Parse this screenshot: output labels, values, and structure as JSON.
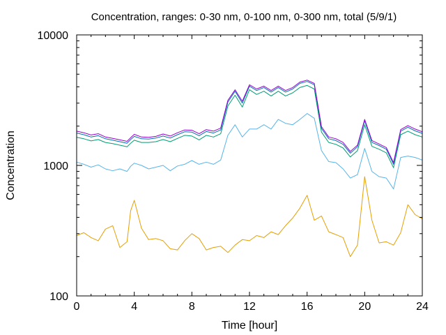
{
  "chart_data": {
    "type": "line",
    "title": "Concentration, ranges: 0-30 nm, 0-100 nm, 0-300 nm, total (5/9/1)",
    "xlabel": "Time [hour]",
    "ylabel": "Concentration",
    "xlim": [
      0,
      24
    ],
    "ylim": [
      100,
      10000
    ],
    "yscale": "log",
    "grid": false,
    "legend": "none",
    "x_ticks": [
      "0",
      "4",
      "8",
      "12",
      "16",
      "20",
      "24"
    ],
    "y_ticks": [
      "100",
      "1000",
      "10000"
    ],
    "x": [
      0,
      0.5,
      1,
      1.5,
      2,
      2.5,
      3,
      3.5,
      3.75,
      4,
      4.5,
      5,
      5.5,
      6,
      6.5,
      7,
      7.5,
      8,
      8.5,
      9,
      9.5,
      10,
      10.5,
      11,
      11.5,
      12,
      12.5,
      13,
      13.5,
      14,
      14.5,
      15,
      15.5,
      16,
      16.5,
      17,
      17.5,
      18,
      18.5,
      19,
      19.5,
      20,
      20.5,
      21,
      21.5,
      22,
      22.5,
      23,
      23.5,
      24
    ],
    "series": [
      {
        "color": "#e69f00",
        "values": [
          290,
          305,
          280,
          265,
          325,
          345,
          235,
          260,
          450,
          540,
          330,
          270,
          275,
          265,
          230,
          225,
          265,
          300,
          275,
          225,
          235,
          240,
          215,
          245,
          270,
          265,
          290,
          280,
          310,
          295,
          345,
          395,
          470,
          590,
          380,
          410,
          310,
          295,
          280,
          200,
          245,
          820,
          380,
          255,
          260,
          245,
          305,
          500,
          420,
          390
        ]
      },
      {
        "color": "#56b4e9",
        "values": [
          1060,
          1020,
          970,
          1010,
          940,
          910,
          940,
          900,
          985,
          1040,
          1000,
          940,
          970,
          1000,
          910,
          990,
          1020,
          1090,
          1020,
          1060,
          1020,
          1100,
          1700,
          2050,
          1650,
          1900,
          1900,
          2050,
          1900,
          2250,
          2100,
          2050,
          2250,
          2500,
          2300,
          1300,
          1070,
          1050,
          940,
          800,
          850,
          1350,
          900,
          820,
          800,
          660,
          1150,
          1180,
          1150,
          1100
        ]
      },
      {
        "color": "#009e73",
        "values": [
          1640,
          1600,
          1540,
          1580,
          1500,
          1470,
          1430,
          1390,
          1480,
          1560,
          1500,
          1500,
          1520,
          1580,
          1520,
          1610,
          1700,
          1680,
          1570,
          1700,
          1650,
          1750,
          2850,
          3450,
          2800,
          3800,
          3500,
          3700,
          3400,
          3700,
          3400,
          3600,
          3950,
          4100,
          3850,
          1800,
          1500,
          1450,
          1360,
          1160,
          1300,
          2050,
          1400,
          1330,
          1250,
          960,
          1720,
          1830,
          1720,
          1650
        ]
      },
      {
        "color": "#0072b2",
        "values": [
          1770,
          1720,
          1650,
          1690,
          1600,
          1560,
          1520,
          1480,
          1580,
          1670,
          1600,
          1590,
          1620,
          1680,
          1620,
          1720,
          1810,
          1800,
          1690,
          1820,
          1770,
          1870,
          3050,
          3700,
          3000,
          4050,
          3750,
          3950,
          3650,
          3950,
          3650,
          3850,
          4250,
          4400,
          4150,
          1920,
          1600,
          1550,
          1450,
          1240,
          1390,
          2200,
          1500,
          1420,
          1330,
          1020,
          1830,
          1960,
          1840,
          1760
        ]
      },
      {
        "color": "#9400d3",
        "values": [
          1830,
          1780,
          1710,
          1750,
          1650,
          1610,
          1570,
          1530,
          1630,
          1730,
          1650,
          1640,
          1670,
          1740,
          1680,
          1780,
          1870,
          1860,
          1750,
          1880,
          1830,
          1930,
          3150,
          3800,
          3100,
          4150,
          3850,
          4050,
          3750,
          4050,
          3750,
          3950,
          4350,
          4500,
          4250,
          1980,
          1650,
          1600,
          1500,
          1280,
          1430,
          2250,
          1550,
          1460,
          1370,
          1050,
          1880,
          2020,
          1900,
          1810
        ]
      }
    ]
  }
}
